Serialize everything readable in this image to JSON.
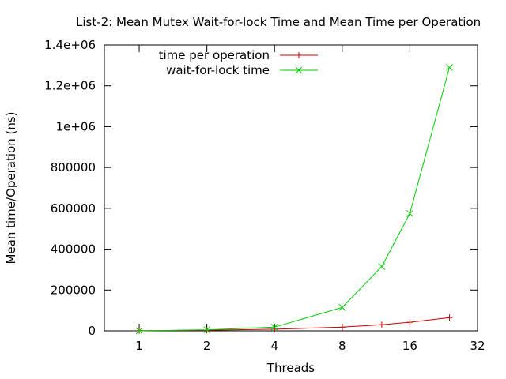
{
  "chart_data": {
    "type": "line",
    "title": "List-2: Mean Mutex Wait-for-lock Time and Mean Time per Operation",
    "xlabel": "Threads",
    "ylabel": "Mean time/Operation (ns)",
    "x_scale": "log2",
    "xlim": [
      0.7,
      32
    ],
    "ylim": [
      0,
      1400000
    ],
    "x_ticks": [
      {
        "value": 1,
        "label": "1"
      },
      {
        "value": 2,
        "label": "2"
      },
      {
        "value": 4,
        "label": "4"
      },
      {
        "value": 8,
        "label": "8"
      },
      {
        "value": 16,
        "label": "16"
      },
      {
        "value": 32,
        "label": "32"
      }
    ],
    "y_ticks": [
      {
        "value": 0,
        "label": "0"
      },
      {
        "value": 200000,
        "label": "200000"
      },
      {
        "value": 400000,
        "label": "400000"
      },
      {
        "value": 600000,
        "label": "600000"
      },
      {
        "value": 800000,
        "label": "800000"
      },
      {
        "value": 1000000,
        "label": "1e+06"
      },
      {
        "value": 1200000,
        "label": "1.2e+06"
      },
      {
        "value": 1400000,
        "label": "1.4e+06"
      }
    ],
    "grid": false,
    "legend_position": "top-left",
    "x": [
      1,
      2,
      4,
      8,
      12,
      16,
      24
    ],
    "series": [
      {
        "name": "time per operation",
        "color": "#cc0000",
        "marker": "plus",
        "values": [
          1000,
          3000,
          8000,
          18000,
          30000,
          42000,
          65000
        ]
      },
      {
        "name": "wait-for-lock time",
        "color": "#00cc00",
        "marker": "cross",
        "values": [
          0,
          5000,
          18000,
          115000,
          315000,
          575000,
          1290000
        ]
      }
    ]
  }
}
